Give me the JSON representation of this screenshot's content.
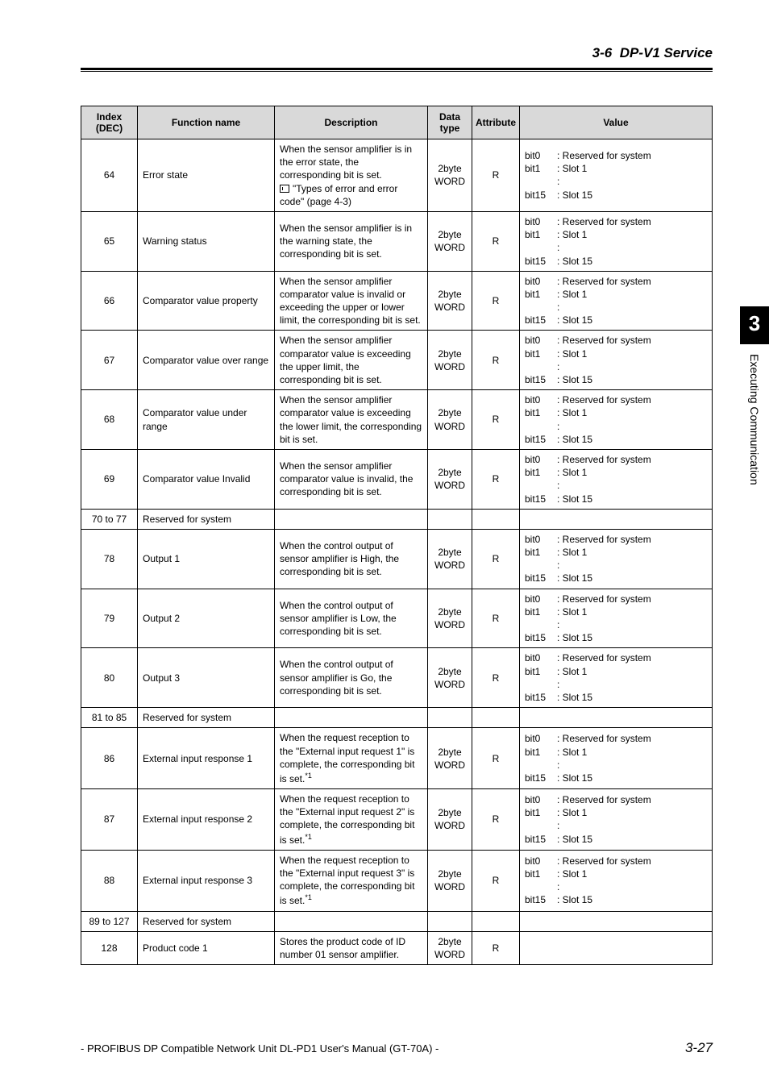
{
  "header": {
    "section": "3-6",
    "title": "DP-V1 Service"
  },
  "sideTab": {
    "chapter": "3",
    "title": "Executing Communication"
  },
  "footer": {
    "manual": "- PROFIBUS DP Compatible Network Unit DL-PD1 User's Manual (GT-70A) -",
    "page": "3-27"
  },
  "table": {
    "headers": [
      "Index (DEC)",
      "Function name",
      "Description",
      "Data type",
      "Attribute",
      "Value"
    ],
    "colWidths": [
      "70px",
      "170px",
      "190px",
      "55px",
      "55px",
      "auto"
    ],
    "bitValue": {
      "bit0": "bit0",
      "bit0desc": ": Reserved for system",
      "bit1": "bit1",
      "bit1desc": ": Slot 1",
      "dots": ":",
      "bit15": "bit15",
      "bit15desc": ": Slot 15"
    },
    "rows": [
      {
        "idx": "64",
        "fn": "Error state",
        "desc": "When the sensor amplifier is in the error state, the corresponding bit is set.",
        "descRef": "\"Types of error and error code\" (page 4-3)",
        "dtype": "2byte WORD",
        "attr": "R",
        "bits": true
      },
      {
        "idx": "65",
        "fn": "Warning status",
        "desc": "When the sensor amplifier is in the warning state, the corresponding bit is set.",
        "dtype": "2byte WORD",
        "attr": "R",
        "bits": true
      },
      {
        "idx": "66",
        "fn": "Comparator value property",
        "desc": "When the sensor amplifier comparator value is invalid or exceeding the upper or lower limit, the corresponding bit is set.",
        "dtype": "2byte WORD",
        "attr": "R",
        "bits": true
      },
      {
        "idx": "67",
        "fn": "Comparator value over range",
        "desc": "When the sensor amplifier comparator value is exceeding the upper limit, the corresponding bit is set.",
        "dtype": "2byte WORD",
        "attr": "R",
        "bits": true
      },
      {
        "idx": "68",
        "fn": "Comparator value under range",
        "desc": "When the sensor amplifier comparator value is exceeding the lower limit, the corresponding bit is set.",
        "dtype": "2byte WORD",
        "attr": "R",
        "bits": true
      },
      {
        "idx": "69",
        "fn": "Comparator value Invalid",
        "desc": "When the sensor amplifier comparator value is invalid, the corresponding bit is set.",
        "dtype": "2byte WORD",
        "attr": "R",
        "bits": true
      },
      {
        "idx": "70 to 77",
        "fn": "Reserved for system",
        "reserved": true
      },
      {
        "idx": "78",
        "fn": "Output 1",
        "desc": "When the control output of sensor amplifier is High, the corresponding bit is set.",
        "dtype": "2byte WORD",
        "attr": "R",
        "bits": true
      },
      {
        "idx": "79",
        "fn": "Output 2",
        "desc": "When the control output of sensor amplifier is Low, the corresponding bit is set.",
        "dtype": "2byte WORD",
        "attr": "R",
        "bits": true
      },
      {
        "idx": "80",
        "fn": "Output 3",
        "desc": "When the control output of sensor amplifier is Go, the corresponding bit is set.",
        "dtype": "2byte WORD",
        "attr": "R",
        "bits": true
      },
      {
        "idx": "81 to 85",
        "fn": "Reserved for system",
        "reserved": true
      },
      {
        "idx": "86",
        "fn": "External input response 1",
        "desc": "When the request reception to the \"External input request 1\" is complete, the corresponding bit is set.",
        "sup": "*1",
        "dtype": "2byte WORD",
        "attr": "R",
        "bits": true
      },
      {
        "idx": "87",
        "fn": "External input response 2",
        "desc": "When the request reception to the \"External input request 2\" is complete, the corresponding bit is set.",
        "sup": "*1",
        "dtype": "2byte WORD",
        "attr": "R",
        "bits": true
      },
      {
        "idx": "88",
        "fn": "External input response 3",
        "desc": "When the request reception to the \"External input request 3\" is complete, the corresponding bit is set.",
        "sup": "*1",
        "dtype": "2byte WORD",
        "attr": "R",
        "bits": true
      },
      {
        "idx": "89 to 127",
        "fn": "Reserved for system",
        "reserved": true
      },
      {
        "idx": "128",
        "fn": "Product code 1",
        "desc": "Stores the product code of ID number 01 sensor amplifier.",
        "dtype": "2byte WORD",
        "attr": "R",
        "bits": false
      }
    ]
  }
}
